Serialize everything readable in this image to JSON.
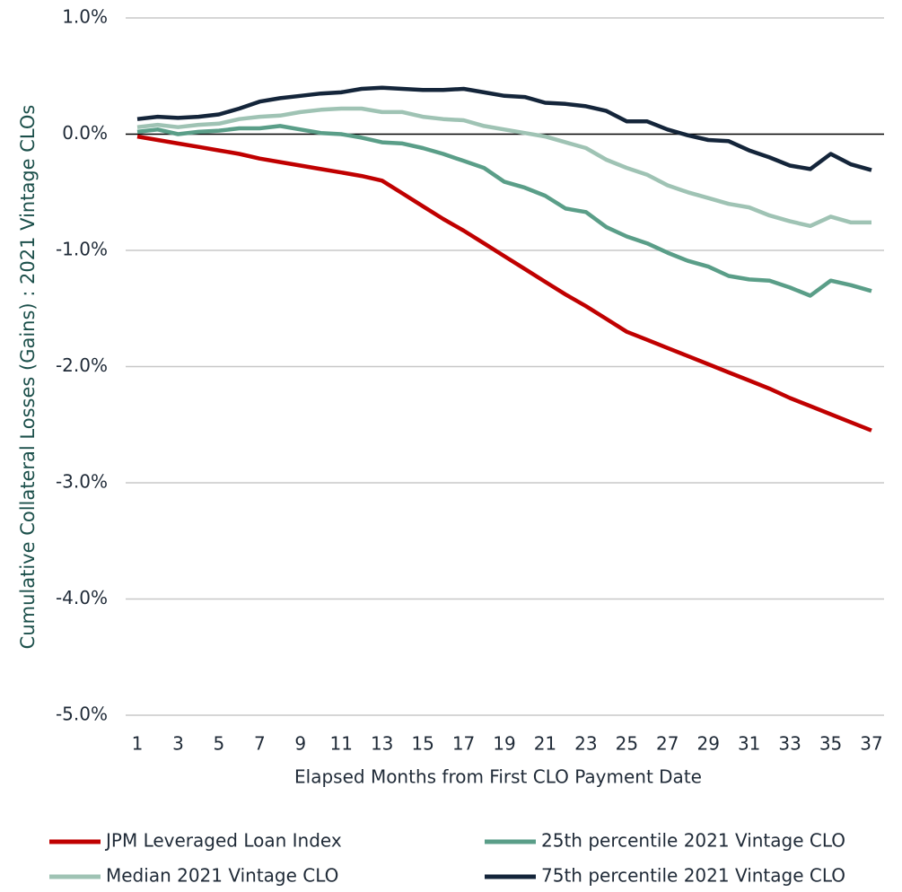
{
  "chart_data": {
    "type": "line",
    "x_label": "Elapsed Months from First CLO Payment Date",
    "y_label": "Cumulative Collateral Losses (Gains) : 2021 Vintage CLOs",
    "x": [
      1,
      2,
      3,
      4,
      5,
      6,
      7,
      8,
      9,
      10,
      11,
      12,
      13,
      14,
      15,
      16,
      17,
      18,
      19,
      20,
      21,
      22,
      23,
      24,
      25,
      26,
      27,
      28,
      29,
      30,
      31,
      32,
      33,
      34,
      35,
      36,
      37
    ],
    "xlim": [
      1,
      37
    ],
    "xticks": [
      1,
      3,
      5,
      7,
      9,
      11,
      13,
      15,
      17,
      19,
      21,
      23,
      25,
      27,
      29,
      31,
      33,
      35,
      37
    ],
    "ylim": [
      -5.0,
      1.0
    ],
    "yticks": [
      {
        "value": 1.0,
        "label": "1.0%"
      },
      {
        "value": 0.0,
        "label": "0.0%"
      },
      {
        "value": -1.0,
        "label": "-1.0%"
      },
      {
        "value": -2.0,
        "label": "-2.0%"
      },
      {
        "value": -3.0,
        "label": "-3.0%"
      },
      {
        "value": -4.0,
        "label": "-4.0%"
      },
      {
        "value": -5.0,
        "label": "-5.0%"
      }
    ],
    "grid": true,
    "legend": "bottom",
    "series": [
      {
        "name": "JPM Leveraged Loan Index",
        "color": "#c00000",
        "values": [
          -0.02,
          -0.05,
          -0.08,
          -0.11,
          -0.14,
          -0.17,
          -0.21,
          -0.24,
          -0.27,
          -0.3,
          -0.33,
          -0.36,
          -0.4,
          -0.51,
          -0.62,
          -0.73,
          -0.83,
          -0.94,
          -1.05,
          -1.16,
          -1.27,
          -1.38,
          -1.48,
          -1.59,
          -1.7,
          -1.77,
          -1.84,
          -1.91,
          -1.98,
          -2.05,
          -2.12,
          -2.19,
          -2.27,
          -2.34,
          -2.41,
          -2.48,
          -2.55
        ]
      },
      {
        "name": "25th percentile 2021 Vintage CLO",
        "color": "#5a9e88",
        "values": [
          0.02,
          0.04,
          0.0,
          0.02,
          0.03,
          0.05,
          0.05,
          0.07,
          0.04,
          0.01,
          0.0,
          -0.03,
          -0.07,
          -0.08,
          -0.12,
          -0.17,
          -0.23,
          -0.29,
          -0.41,
          -0.46,
          -0.53,
          -0.64,
          -0.67,
          -0.8,
          -0.88,
          -0.94,
          -1.02,
          -1.09,
          -1.14,
          -1.22,
          -1.25,
          -1.26,
          -1.32,
          -1.39,
          -1.26,
          -1.3,
          -1.35
        ]
      },
      {
        "name": "Median 2021 Vintage CLO",
        "color": "#9fc3b4",
        "values": [
          0.06,
          0.08,
          0.06,
          0.08,
          0.09,
          0.13,
          0.15,
          0.16,
          0.19,
          0.21,
          0.22,
          0.22,
          0.19,
          0.19,
          0.15,
          0.13,
          0.12,
          0.07,
          0.04,
          0.01,
          -0.02,
          -0.07,
          -0.12,
          -0.22,
          -0.29,
          -0.35,
          -0.44,
          -0.5,
          -0.55,
          -0.6,
          -0.63,
          -0.7,
          -0.75,
          -0.79,
          -0.71,
          -0.76,
          -0.76
        ]
      },
      {
        "name": "75th percentile 2021 Vintage CLO",
        "color": "#14253a",
        "values": [
          0.13,
          0.15,
          0.14,
          0.15,
          0.17,
          0.22,
          0.28,
          0.31,
          0.33,
          0.35,
          0.36,
          0.39,
          0.4,
          0.39,
          0.38,
          0.38,
          0.39,
          0.36,
          0.33,
          0.32,
          0.27,
          0.26,
          0.24,
          0.2,
          0.11,
          0.11,
          0.04,
          -0.01,
          -0.05,
          -0.06,
          -0.14,
          -0.2,
          -0.27,
          -0.3,
          -0.17,
          -0.26,
          -0.31
        ]
      }
    ]
  }
}
